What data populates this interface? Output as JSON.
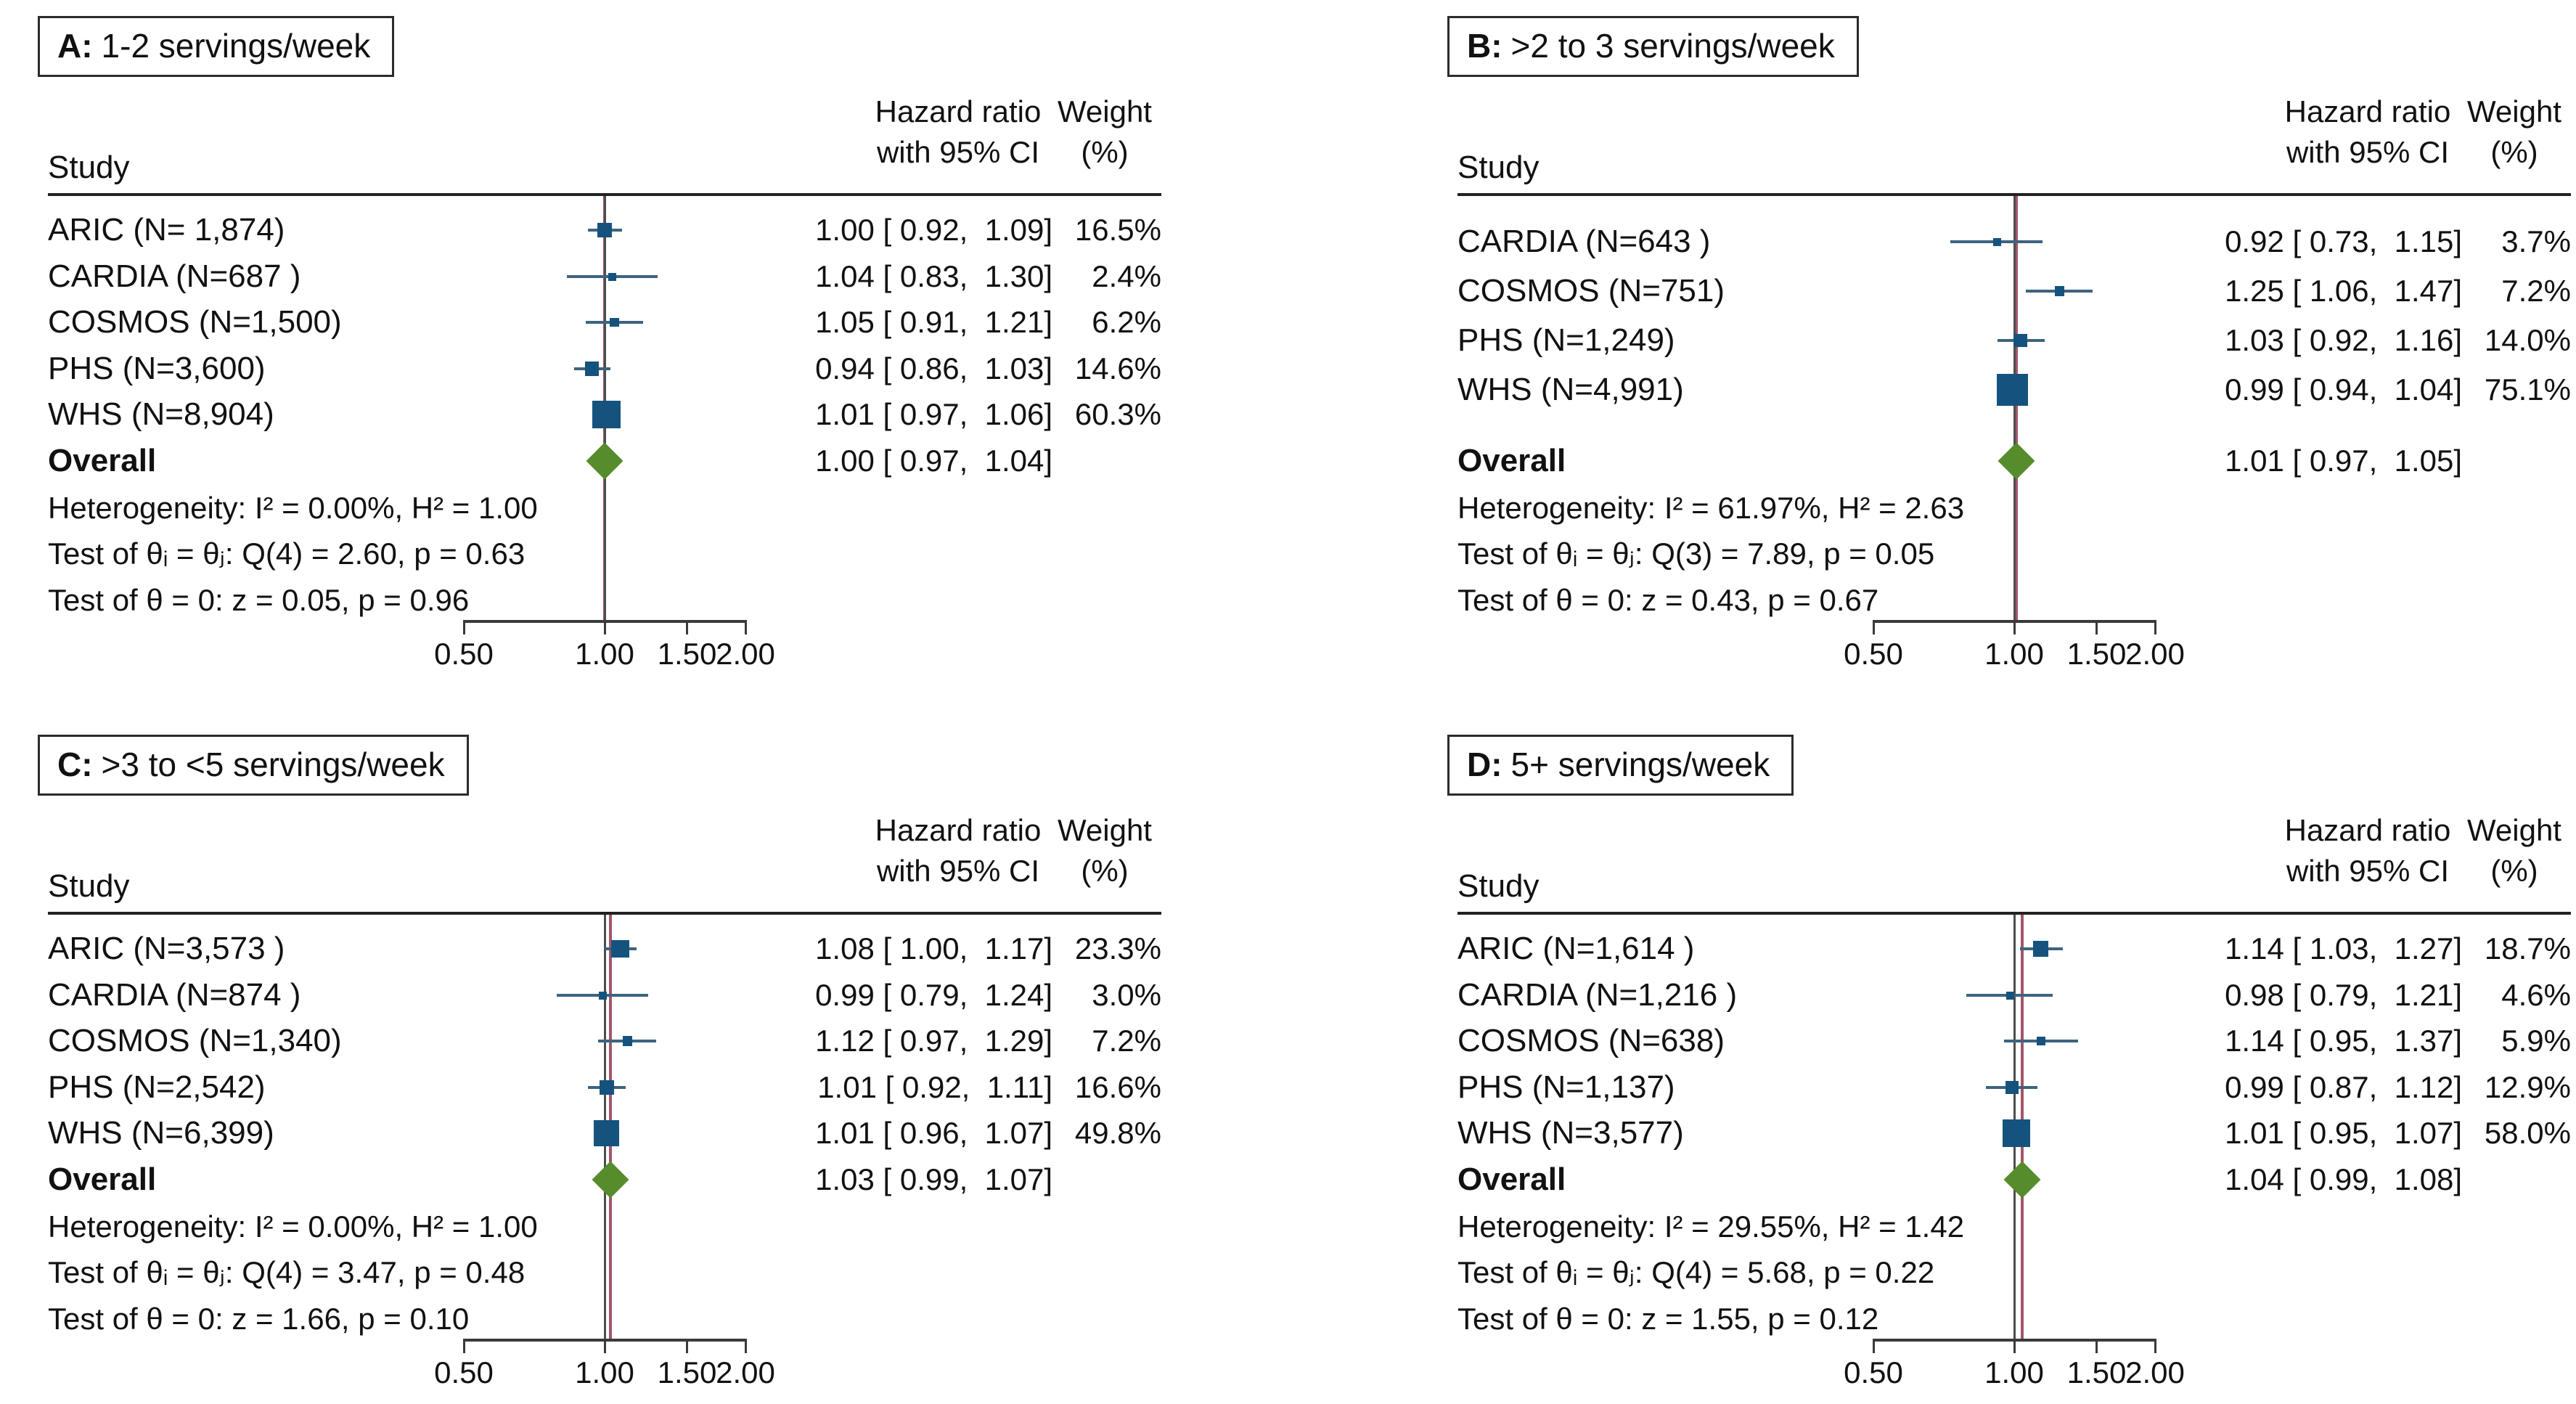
{
  "figure": {
    "background": "#ffffff"
  },
  "columns": {
    "study": "Study",
    "hr_line1": "Hazard ratio",
    "hr_line2": "with 95% CI",
    "weight_line1": "Weight",
    "weight_line2": "(%)"
  },
  "colors": {
    "marker_square": "#15537e",
    "ci_line": "#3d6480",
    "overall_diamond": "#568c2b",
    "null_line": "#4d4d4d",
    "overall_line": "#a25669",
    "text": "#111111"
  },
  "axis": {
    "scale": "log",
    "ticks": [
      0.5,
      1.0,
      1.5,
      2.0
    ],
    "tick_labels": [
      "0.50",
      "1.00",
      "1.50",
      "2.00"
    ],
    "null_value": 1.0
  },
  "chart_data": [
    {
      "type": "scatter",
      "variant": "forest",
      "panel": "A",
      "title_letter": "A:",
      "title_text": "1-2 servings/week",
      "x_scale": "log",
      "xlim": [
        0.5,
        2.0
      ],
      "x_ticks": [
        "0.50",
        "1.00",
        "1.50",
        "2.00"
      ],
      "studies": [
        {
          "label": "ARIC (N= 1,874)",
          "hr": 1.0,
          "ci": [
            0.92,
            1.09
          ],
          "hr_text": "1.00 [ 0.92,  1.09]",
          "weight_pct": 16.5,
          "weight_text": "16.5%"
        },
        {
          "label": "CARDIA (N=687 )",
          "hr": 1.04,
          "ci": [
            0.83,
            1.3
          ],
          "hr_text": "1.04 [ 0.83,  1.30]",
          "weight_pct": 2.4,
          "weight_text": "2.4%"
        },
        {
          "label": "COSMOS (N=1,500)",
          "hr": 1.05,
          "ci": [
            0.91,
            1.21
          ],
          "hr_text": "1.05 [ 0.91,  1.21]",
          "weight_pct": 6.2,
          "weight_text": "6.2%"
        },
        {
          "label": "PHS (N=3,600)",
          "hr": 0.94,
          "ci": [
            0.86,
            1.03
          ],
          "hr_text": "0.94 [ 0.86,  1.03]",
          "weight_pct": 14.6,
          "weight_text": "14.6%"
        },
        {
          "label": "WHS (N=8,904)",
          "hr": 1.01,
          "ci": [
            0.97,
            1.06
          ],
          "hr_text": "1.01 [ 0.97,  1.06]",
          "weight_pct": 60.3,
          "weight_text": "60.3%"
        }
      ],
      "overall": {
        "label": "Overall",
        "hr": 1.0,
        "ci": [
          0.97,
          1.04
        ],
        "hr_text": "1.00 [ 0.97,  1.04]"
      },
      "stats": [
        "Heterogeneity: I² = 0.00%, H² = 1.00",
        "Test of θᵢ = θⱼ: Q(4) = 2.60, p = 0.63",
        "Test of θ = 0: z = 0.05, p = 0.96"
      ]
    },
    {
      "type": "scatter",
      "variant": "forest",
      "panel": "B",
      "title_letter": "B:",
      "title_text": ">2 to 3 servings/week",
      "x_scale": "log",
      "xlim": [
        0.5,
        2.0
      ],
      "x_ticks": [
        "0.50",
        "1.00",
        "1.50",
        "2.00"
      ],
      "studies": [
        {
          "label": "CARDIA (N=643 )",
          "hr": 0.92,
          "ci": [
            0.73,
            1.15
          ],
          "hr_text": "0.92 [ 0.73,  1.15]",
          "weight_pct": 3.7,
          "weight_text": "3.7%"
        },
        {
          "label": "COSMOS (N=751)",
          "hr": 1.25,
          "ci": [
            1.06,
            1.47
          ],
          "hr_text": "1.25 [ 1.06,  1.47]",
          "weight_pct": 7.2,
          "weight_text": "7.2%"
        },
        {
          "label": "PHS (N=1,249)",
          "hr": 1.03,
          "ci": [
            0.92,
            1.16
          ],
          "hr_text": "1.03 [ 0.92,  1.16]",
          "weight_pct": 14.0,
          "weight_text": "14.0%"
        },
        {
          "label": "WHS (N=4,991)",
          "hr": 0.99,
          "ci": [
            0.94,
            1.04
          ],
          "hr_text": "0.99 [ 0.94,  1.04]",
          "weight_pct": 75.1,
          "weight_text": "75.1%"
        }
      ],
      "overall": {
        "label": "Overall",
        "hr": 1.01,
        "ci": [
          0.97,
          1.05
        ],
        "hr_text": "1.01 [ 0.97,  1.05]"
      },
      "stats": [
        "Heterogeneity: I² = 61.97%, H² = 2.63",
        "Test of θᵢ = θⱼ: Q(3) = 7.89, p = 0.05",
        "Test of θ = 0: z = 0.43, p = 0.67"
      ]
    },
    {
      "type": "scatter",
      "variant": "forest",
      "panel": "C",
      "title_letter": "C:",
      "title_text": ">3 to <5 servings/week",
      "x_scale": "log",
      "xlim": [
        0.5,
        2.0
      ],
      "x_ticks": [
        "0.50",
        "1.00",
        "1.50",
        "2.00"
      ],
      "studies": [
        {
          "label": "ARIC (N=3,573 )",
          "hr": 1.08,
          "ci": [
            1.0,
            1.17
          ],
          "hr_text": "1.08 [ 1.00,  1.17]",
          "weight_pct": 23.3,
          "weight_text": "23.3%"
        },
        {
          "label": "CARDIA (N=874 )",
          "hr": 0.99,
          "ci": [
            0.79,
            1.24
          ],
          "hr_text": "0.99 [ 0.79,  1.24]",
          "weight_pct": 3.0,
          "weight_text": "3.0%"
        },
        {
          "label": "COSMOS (N=1,340)",
          "hr": 1.12,
          "ci": [
            0.97,
            1.29
          ],
          "hr_text": "1.12 [ 0.97,  1.29]",
          "weight_pct": 7.2,
          "weight_text": "7.2%"
        },
        {
          "label": "PHS (N=2,542)",
          "hr": 1.01,
          "ci": [
            0.92,
            1.11
          ],
          "hr_text": "1.01 [ 0.92,  1.11]",
          "weight_pct": 16.6,
          "weight_text": "16.6%"
        },
        {
          "label": "WHS (N=6,399)",
          "hr": 1.01,
          "ci": [
            0.96,
            1.07
          ],
          "hr_text": "1.01 [ 0.96,  1.07]",
          "weight_pct": 49.8,
          "weight_text": "49.8%"
        }
      ],
      "overall": {
        "label": "Overall",
        "hr": 1.03,
        "ci": [
          0.99,
          1.07
        ],
        "hr_text": "1.03 [ 0.99,  1.07]"
      },
      "stats": [
        "Heterogeneity: I² = 0.00%, H² = 1.00",
        "Test of θᵢ = θⱼ: Q(4) = 3.47, p = 0.48",
        "Test of θ = 0: z = 1.66, p = 0.10"
      ]
    },
    {
      "type": "scatter",
      "variant": "forest",
      "panel": "D",
      "title_letter": "D:",
      "title_text": "5+ servings/week",
      "x_scale": "log",
      "xlim": [
        0.5,
        2.0
      ],
      "x_ticks": [
        "0.50",
        "1.00",
        "1.50",
        "2.00"
      ],
      "studies": [
        {
          "label": "ARIC (N=1,614 )",
          "hr": 1.14,
          "ci": [
            1.03,
            1.27
          ],
          "hr_text": "1.14 [ 1.03,  1.27]",
          "weight_pct": 18.7,
          "weight_text": "18.7%"
        },
        {
          "label": "CARDIA (N=1,216 )",
          "hr": 0.98,
          "ci": [
            0.79,
            1.21
          ],
          "hr_text": "0.98 [ 0.79,  1.21]",
          "weight_pct": 4.6,
          "weight_text": "4.6%"
        },
        {
          "label": "COSMOS (N=638)",
          "hr": 1.14,
          "ci": [
            0.95,
            1.37
          ],
          "hr_text": "1.14 [ 0.95,  1.37]",
          "weight_pct": 5.9,
          "weight_text": "5.9%"
        },
        {
          "label": "PHS (N=1,137)",
          "hr": 0.99,
          "ci": [
            0.87,
            1.12
          ],
          "hr_text": "0.99 [ 0.87,  1.12]",
          "weight_pct": 12.9,
          "weight_text": "12.9%"
        },
        {
          "label": "WHS (N=3,577)",
          "hr": 1.01,
          "ci": [
            0.95,
            1.07
          ],
          "hr_text": "1.01 [ 0.95,  1.07]",
          "weight_pct": 58.0,
          "weight_text": "58.0%"
        }
      ],
      "overall": {
        "label": "Overall",
        "hr": 1.04,
        "ci": [
          0.99,
          1.08
        ],
        "hr_text": "1.04 [ 0.99,  1.08]"
      },
      "stats": [
        "Heterogeneity: I² = 29.55%, H² = 1.42",
        "Test of θᵢ = θⱼ: Q(4) = 5.68, p = 0.22",
        "Test of θ = 0: z = 1.55, p = 0.12"
      ]
    }
  ]
}
